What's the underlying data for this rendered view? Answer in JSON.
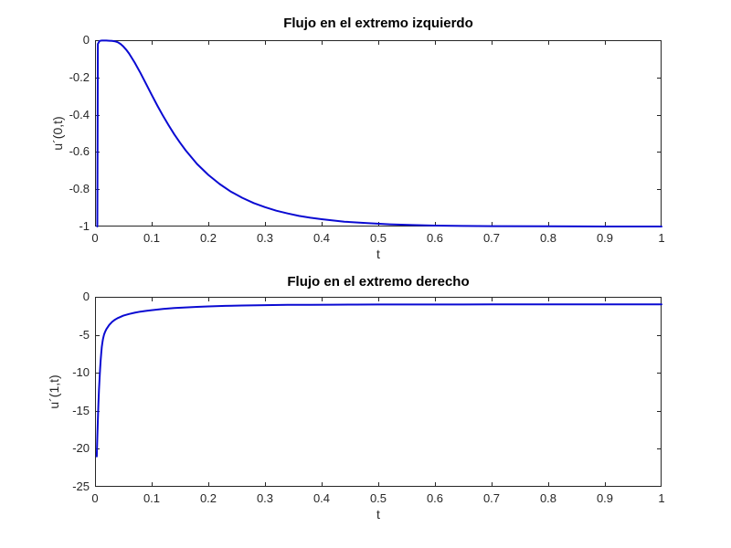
{
  "figure": {
    "background": "#ffffff",
    "axis_color": "#262626",
    "line_color": "#0a0ad2"
  },
  "chart_data": [
    {
      "type": "line",
      "title": "Flujo en el extremo izquierdo",
      "xlabel": "t",
      "ylabel": "u´(0,t)",
      "xlim": [
        0,
        1
      ],
      "ylim": [
        -1,
        0
      ],
      "grid": false,
      "legend_position": "none",
      "xtick_values": [
        0,
        0.1,
        0.2,
        0.3,
        0.4,
        0.5,
        0.6,
        0.7,
        0.8,
        0.9,
        1
      ],
      "xtick_labels": [
        "0",
        "0.1",
        "0.2",
        "0.3",
        "0.4",
        "0.5",
        "0.6",
        "0.7",
        "0.8",
        "0.9",
        "1"
      ],
      "ytick_values": [
        0,
        -0.2,
        -0.4,
        -0.6,
        -0.8,
        -1
      ],
      "ytick_labels": [
        "0",
        "-0.2",
        "-0.4",
        "-0.6",
        "-0.8",
        "-1"
      ],
      "line_color": "#0a0ad2",
      "axis_color": "#262626",
      "points": [
        [
          0.004,
          -1
        ],
        [
          0.005,
          -0.02
        ],
        [
          0.008,
          -0.004
        ],
        [
          0.012,
          -0.002
        ],
        [
          0.016,
          -0.002
        ],
        [
          0.02,
          -0.002
        ],
        [
          0.025,
          -0.003
        ],
        [
          0.03,
          -0.004
        ],
        [
          0.035,
          -0.006
        ],
        [
          0.04,
          -0.011
        ],
        [
          0.045,
          -0.02
        ],
        [
          0.05,
          -0.034
        ],
        [
          0.055,
          -0.051
        ],
        [
          0.06,
          -0.071
        ],
        [
          0.07,
          -0.12
        ],
        [
          0.08,
          -0.175
        ],
        [
          0.09,
          -0.234
        ],
        [
          0.1,
          -0.293
        ],
        [
          0.11,
          -0.351
        ],
        [
          0.12,
          -0.406
        ],
        [
          0.13,
          -0.457
        ],
        [
          0.14,
          -0.506
        ],
        [
          0.15,
          -0.55
        ],
        [
          0.16,
          -0.591
        ],
        [
          0.18,
          -0.664
        ],
        [
          0.2,
          -0.723
        ],
        [
          0.22,
          -0.772
        ],
        [
          0.24,
          -0.813
        ],
        [
          0.26,
          -0.846
        ],
        [
          0.28,
          -0.874
        ],
        [
          0.3,
          -0.896
        ],
        [
          0.32,
          -0.915
        ],
        [
          0.34,
          -0.93
        ],
        [
          0.36,
          -0.943
        ],
        [
          0.38,
          -0.953
        ],
        [
          0.4,
          -0.961
        ],
        [
          0.44,
          -0.974
        ],
        [
          0.48,
          -0.982
        ],
        [
          0.52,
          -0.988
        ],
        [
          0.56,
          -0.992
        ],
        [
          0.6,
          -0.995
        ],
        [
          0.65,
          -0.997
        ],
        [
          0.7,
          -0.998
        ],
        [
          0.8,
          -0.999
        ],
        [
          0.9,
          -1
        ],
        [
          1,
          -1
        ]
      ]
    },
    {
      "type": "line",
      "title": "Flujo en el extremo derecho",
      "xlabel": "t",
      "ylabel": "u´(1,t)",
      "xlim": [
        0,
        1
      ],
      "ylim": [
        -25,
        0
      ],
      "grid": false,
      "legend_position": "none",
      "xtick_values": [
        0,
        0.1,
        0.2,
        0.3,
        0.4,
        0.5,
        0.6,
        0.7,
        0.8,
        0.9,
        1
      ],
      "xtick_labels": [
        "0",
        "0.1",
        "0.2",
        "0.3",
        "0.4",
        "0.5",
        "0.6",
        "0.7",
        "0.8",
        "0.9",
        "1"
      ],
      "ytick_values": [
        0,
        -5,
        -10,
        -15,
        -20,
        -25
      ],
      "ytick_labels": [
        "0",
        "-5",
        "-10",
        "-15",
        "-20",
        "-25"
      ],
      "line_color": "#0a0ad2",
      "axis_color": "#262626",
      "points": [
        [
          0.003,
          -21
        ],
        [
          0.004,
          -18.5
        ],
        [
          0.005,
          -16.2
        ],
        [
          0.006,
          -14.1
        ],
        [
          0.007,
          -12.3
        ],
        [
          0.008,
          -10.7
        ],
        [
          0.009,
          -9.4
        ],
        [
          0.01,
          -8.3
        ],
        [
          0.011,
          -7.4
        ],
        [
          0.012,
          -6.6
        ],
        [
          0.013,
          -6.0
        ],
        [
          0.014,
          -5.55
        ],
        [
          0.016,
          -4.95
        ],
        [
          0.018,
          -4.55
        ],
        [
          0.02,
          -4.25
        ],
        [
          0.025,
          -3.7
        ],
        [
          0.03,
          -3.3
        ],
        [
          0.035,
          -3.02
        ],
        [
          0.04,
          -2.8
        ],
        [
          0.05,
          -2.48
        ],
        [
          0.06,
          -2.26
        ],
        [
          0.07,
          -2.09
        ],
        [
          0.08,
          -1.95
        ],
        [
          0.09,
          -1.85
        ],
        [
          0.1,
          -1.76
        ],
        [
          0.12,
          -1.6
        ],
        [
          0.14,
          -1.48
        ],
        [
          0.16,
          -1.39
        ],
        [
          0.18,
          -1.32
        ],
        [
          0.2,
          -1.26
        ],
        [
          0.23,
          -1.19
        ],
        [
          0.26,
          -1.14
        ],
        [
          0.3,
          -1.09
        ],
        [
          0.34,
          -1.06
        ],
        [
          0.38,
          -1.04
        ],
        [
          0.42,
          -1.03
        ],
        [
          0.46,
          -1.02
        ],
        [
          0.5,
          -1.015
        ],
        [
          0.55,
          -1.01
        ],
        [
          0.6,
          -1.007
        ],
        [
          0.7,
          -1.003
        ],
        [
          0.8,
          -1.001
        ],
        [
          0.9,
          -1.0005
        ],
        [
          1,
          -1.0002
        ]
      ]
    }
  ],
  "layout_note": ""
}
